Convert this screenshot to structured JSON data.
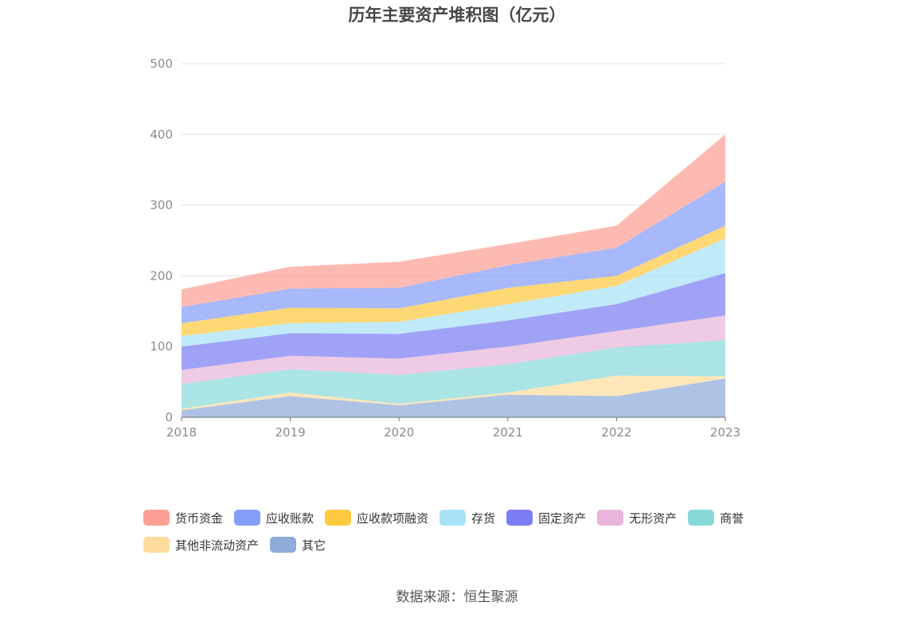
{
  "chart_data": {
    "type": "area",
    "stacked": true,
    "title": "历年主要资产堆积图（亿元）",
    "source": "数据来源：恒生聚源",
    "categories": [
      "2018",
      "2019",
      "2020",
      "2021",
      "2022",
      "2023"
    ],
    "ylim": [
      0,
      500
    ],
    "yticks": [
      0,
      100,
      200,
      300,
      400,
      500
    ],
    "grid": true,
    "legend_position": "bottom",
    "series": [
      {
        "name": "其它",
        "color": "#8eabd9",
        "values": [
          10,
          30,
          17,
          32,
          30,
          55
        ]
      },
      {
        "name": "其他非流动资产",
        "color": "#fedc9c",
        "values": [
          2,
          5,
          2,
          3,
          29,
          3
        ]
      },
      {
        "name": "商誉",
        "color": "#89d9d9",
        "values": [
          35,
          33,
          41,
          40,
          40,
          51
        ]
      },
      {
        "name": "无形资产",
        "color": "#e7b6da",
        "values": [
          20,
          19,
          23,
          25,
          23,
          35
        ]
      },
      {
        "name": "固定资产",
        "color": "#7b7ef2",
        "values": [
          33,
          32,
          35,
          37,
          38,
          60
        ]
      },
      {
        "name": "存货",
        "color": "#a9e2f7",
        "values": [
          15,
          14,
          17,
          23,
          26,
          49
        ]
      },
      {
        "name": "应收款项融资",
        "color": "#fdc93f",
        "values": [
          18,
          22,
          19,
          23,
          14,
          18
        ]
      },
      {
        "name": "应收账款",
        "color": "#859ef9",
        "values": [
          23,
          27,
          29,
          32,
          40,
          62
        ]
      },
      {
        "name": "货币资金",
        "color": "#fca095",
        "values": [
          25,
          31,
          37,
          30,
          31,
          67
        ]
      }
    ]
  },
  "legend_order": [
    "货币资金",
    "应收账款",
    "应收款项融资",
    "存货",
    "固定资产",
    "无形资产",
    "商誉",
    "其他非流动资产",
    "其它"
  ]
}
